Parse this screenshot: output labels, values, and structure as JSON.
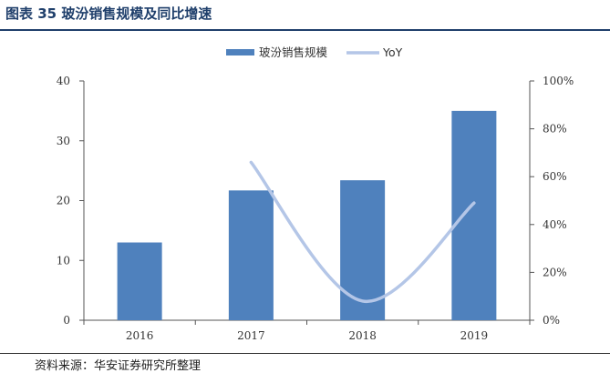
{
  "title": "图表 35  玻汾销售规模及同比增速",
  "source": "资料来源：华安证券研究所整理",
  "chart_data": {
    "type": "bar",
    "categories": [
      "2016",
      "2017",
      "2018",
      "2019"
    ],
    "series": [
      {
        "name": "玻汾销售规模",
        "type": "bar",
        "axis": "left",
        "color": "#4f81bd",
        "values": [
          13.0,
          21.7,
          23.4,
          35.0
        ]
      },
      {
        "name": "YoY",
        "type": "line",
        "axis": "right",
        "color": "#b4c6e7",
        "values": [
          null,
          66,
          8,
          49
        ]
      }
    ],
    "ylim_left": [
      0,
      40
    ],
    "yticks_left": [
      "0",
      "10",
      "20",
      "30",
      "40"
    ],
    "ylim_right": [
      0,
      100
    ],
    "yticks_right": [
      "0%",
      "20%",
      "40%",
      "60%",
      "80%",
      "100%"
    ],
    "legend_position": "top-center",
    "grid": false
  }
}
